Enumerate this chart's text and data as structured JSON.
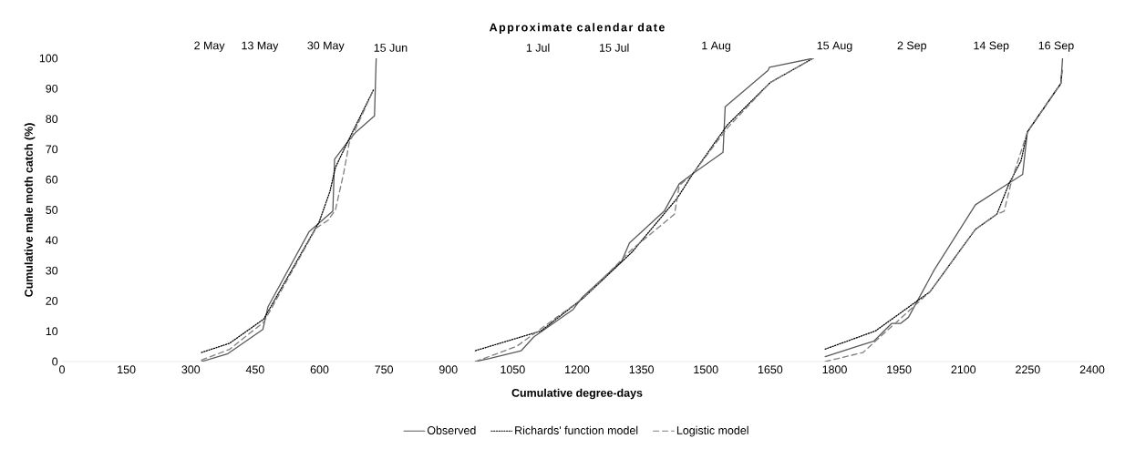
{
  "chart_data": {
    "type": "line",
    "xlabel": "Cumulative degree-days",
    "ylabel": "Cumulative male moth catch (%)",
    "xlim": [
      0,
      2400
    ],
    "xticks": [
      0,
      150,
      300,
      450,
      600,
      750,
      900,
      1050,
      1200,
      1350,
      1500,
      1650,
      1800,
      1950,
      2100,
      2250,
      2400
    ],
    "ylim": [
      0,
      100
    ],
    "yticks": [
      0,
      10,
      20,
      30,
      40,
      50,
      60,
      70,
      80,
      90,
      100
    ],
    "annotations": [
      "Approximate calendar date",
      "2 May",
      "13 May",
      "30 May",
      "15 Jun",
      "1 Jul",
      "15 Jul",
      "1 Aug",
      "15 Aug",
      "2 Sep",
      "14 Sep",
      "16 Sep"
    ],
    "grid": false,
    "legend": "bottom",
    "marker": "none",
    "series": [
      {
        "name": "Observed",
        "color": "#595959",
        "line_style": "solid",
        "x": [
          325,
          385,
          468,
          480,
          576,
          631,
          635,
          664,
          685,
          728,
          732,
          null,
          963,
          996,
          1070,
          1099,
          1191,
          1212,
          1304,
          1322,
          1403,
          1438,
          1470,
          1540,
          1545,
          1645,
          1648,
          1750,
          null,
          1778,
          1852,
          1891,
          1933,
          1954,
          1972,
          2032,
          2128,
          2199,
          2238,
          2249,
          2327,
          2331
        ],
        "values": [
          0,
          2.5,
          10.6,
          18.1,
          42.9,
          49.6,
          66.7,
          72.2,
          75.7,
          81,
          100,
          null,
          0,
          1,
          3.6,
          8.1,
          17.2,
          21.2,
          33.1,
          39.1,
          49.6,
          58.6,
          62,
          69,
          84,
          96,
          97,
          100,
          null,
          1.6,
          5,
          6.7,
          12.6,
          12.6,
          14.6,
          30.2,
          51.7,
          58.2,
          61.7,
          75.7,
          91.7,
          100
        ]
      },
      {
        "name": "Richards' function model",
        "color": "#000000",
        "line_style": "dotted",
        "x": [
          325,
          390,
          470,
          599,
          624,
          637,
          664,
          726,
          null,
          963,
          1116,
          1215,
          1328,
          1434,
          1470,
          1550,
          1650,
          1750,
          null,
          1778,
          1895,
          2022,
          2128,
          2178,
          2206,
          2234,
          2249,
          2327,
          2330
        ],
        "values": [
          3,
          6,
          14,
          46,
          56,
          64,
          72,
          89.7,
          null,
          3.6,
          10.1,
          21,
          36.1,
          54,
          62,
          78,
          92,
          100,
          null,
          4.1,
          10.1,
          23,
          43.6,
          48.6,
          58.6,
          66.1,
          75.7,
          91.7,
          96
        ]
      },
      {
        "name": "Logistic model",
        "color": "#7f7f7f",
        "line_style": "dashed",
        "x": [
          325,
          390,
          470,
          592,
          620,
          637,
          656,
          669,
          726,
          null,
          963,
          1059,
          1215,
          1328,
          1427,
          1438,
          1470,
          1550,
          1650,
          1750,
          null,
          1778,
          1866,
          2022,
          2128,
          2178,
          2195,
          2213,
          2249,
          2327,
          2330
        ],
        "values": [
          0.5,
          4,
          13,
          44,
          46.6,
          50,
          62,
          72,
          89.7,
          null,
          0,
          5,
          21,
          37,
          48.6,
          58,
          62,
          77,
          92,
          100,
          null,
          0,
          3,
          23,
          43.6,
          48.6,
          49.6,
          60,
          75.7,
          91.7,
          96
        ]
      }
    ]
  }
}
